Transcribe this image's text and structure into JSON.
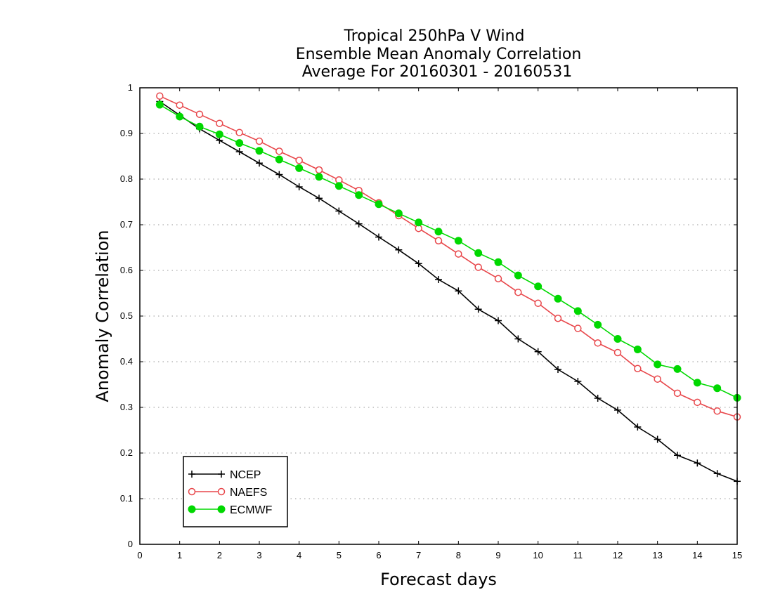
{
  "chart_data": {
    "type": "line",
    "title_lines": [
      "Tropical 250hPa V Wind",
      "Ensemble Mean Anomaly Correlation",
      "Average For 20160301 - 20160531"
    ],
    "xlabel": "Forecast days",
    "ylabel": "Anomaly Correlation",
    "xlim": [
      0,
      15
    ],
    "ylim": [
      0,
      1
    ],
    "xticks": [
      0,
      1,
      2,
      3,
      4,
      5,
      6,
      7,
      8,
      9,
      10,
      11,
      12,
      13,
      14,
      15
    ],
    "yticks": [
      0,
      0.1,
      0.2,
      0.3,
      0.4,
      0.5,
      0.6,
      0.7,
      0.8,
      0.9,
      1
    ],
    "grid": "horizontal dotted",
    "legend_position": "bottom-left",
    "x": [
      0.5,
      1,
      1.5,
      2,
      2.5,
      3,
      3.5,
      4,
      4.5,
      5,
      5.5,
      6,
      6.5,
      7,
      7.5,
      8,
      8.5,
      9,
      9.5,
      10,
      10.5,
      11,
      11.5,
      12,
      12.5,
      13,
      13.5,
      14,
      14.5,
      15
    ],
    "series": [
      {
        "name": "NCEP",
        "color": "#000000",
        "marker": "plus",
        "values": [
          0.97,
          0.94,
          0.91,
          0.885,
          0.86,
          0.835,
          0.81,
          0.783,
          0.758,
          0.73,
          0.702,
          0.673,
          0.645,
          0.615,
          0.58,
          0.555,
          0.515,
          0.49,
          0.45,
          0.422,
          0.383,
          0.357,
          0.32,
          0.294,
          0.257,
          0.23,
          0.195,
          0.178,
          0.155,
          0.138
        ]
      },
      {
        "name": "NAEFS",
        "color": "#e8474b",
        "marker": "open-circle",
        "values": [
          0.982,
          0.962,
          0.942,
          0.922,
          0.902,
          0.883,
          0.861,
          0.841,
          0.82,
          0.798,
          0.775,
          0.748,
          0.72,
          0.692,
          0.665,
          0.636,
          0.607,
          0.582,
          0.552,
          0.528,
          0.495,
          0.473,
          0.441,
          0.42,
          0.385,
          0.362,
          0.331,
          0.311,
          0.292,
          0.279
        ]
      },
      {
        "name": "ECMWF",
        "color": "#00d800",
        "marker": "filled-circle",
        "values": [
          0.963,
          0.937,
          0.915,
          0.898,
          0.879,
          0.862,
          0.843,
          0.824,
          0.805,
          0.785,
          0.765,
          0.745,
          0.725,
          0.705,
          0.685,
          0.665,
          0.638,
          0.618,
          0.589,
          0.565,
          0.538,
          0.511,
          0.481,
          0.45,
          0.427,
          0.394,
          0.384,
          0.354,
          0.342,
          0.321
        ]
      }
    ]
  }
}
